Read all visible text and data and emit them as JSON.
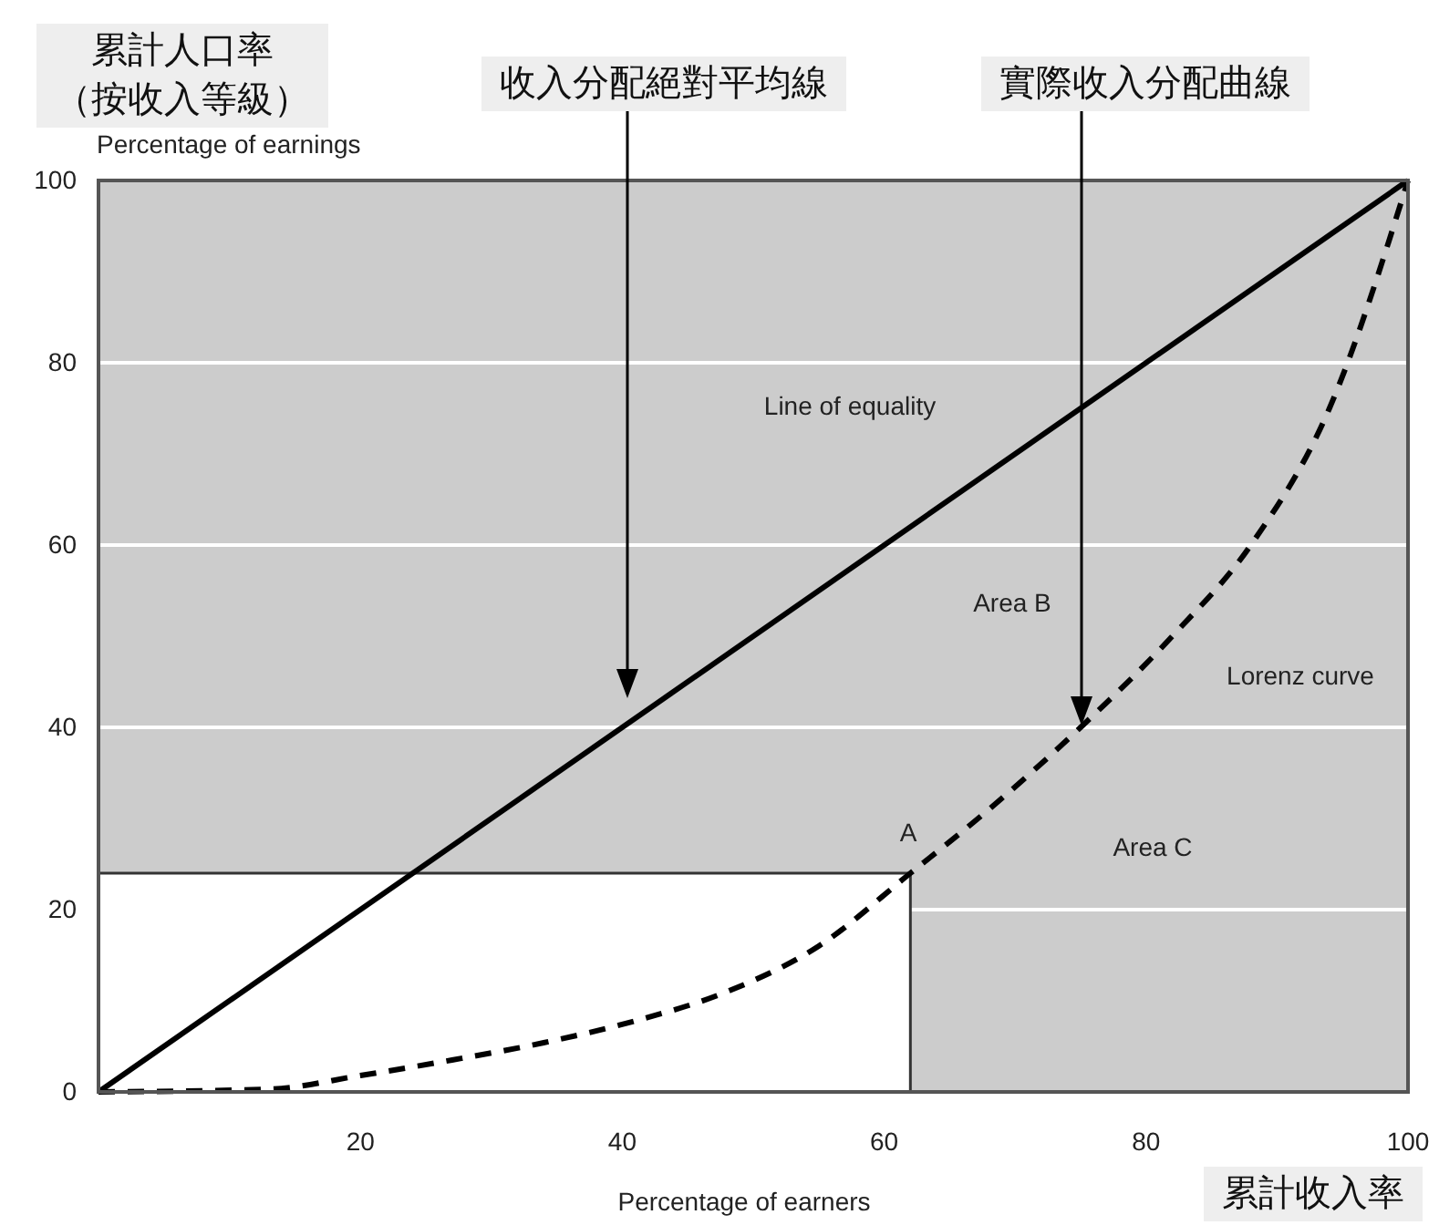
{
  "chart_data": {
    "type": "line",
    "xlabel": "Percentage of earners",
    "ylabel": "Percentage of earnings",
    "xlim": [
      0,
      100
    ],
    "ylim": [
      0,
      100
    ],
    "xticks": [
      20,
      40,
      60,
      80,
      100
    ],
    "yticks": [
      0,
      20,
      40,
      60,
      80,
      100
    ],
    "grid": "y",
    "series": [
      {
        "type": "area",
        "color": "#ffffff",
        "x": [
          0,
          62
        ],
        "values": [
          24,
          24
        ]
      },
      {
        "color": "#000000",
        "x": [
          0,
          100
        ],
        "values": [
          0,
          100
        ],
        "line_style": "solid"
      },
      {
        "color": "#000000",
        "x": [
          0,
          13,
          20,
          27,
          34,
          41,
          48,
          55,
          62,
          68,
          75,
          82,
          88,
          94,
          100
        ],
        "values": [
          0,
          0.3,
          1.8,
          3.5,
          5.4,
          7.8,
          11,
          16,
          24,
          31,
          40,
          50,
          60,
          75,
          100
        ],
        "line_style": "dashed"
      }
    ],
    "annotations": [
      "累計人口率（按收入等級）",
      "收入分配絕對平均線",
      "實際收入分配曲線",
      "Line of equality",
      "Area B",
      "Lorenz curve",
      "A",
      "Area C",
      "累計收入率"
    ]
  }
}
